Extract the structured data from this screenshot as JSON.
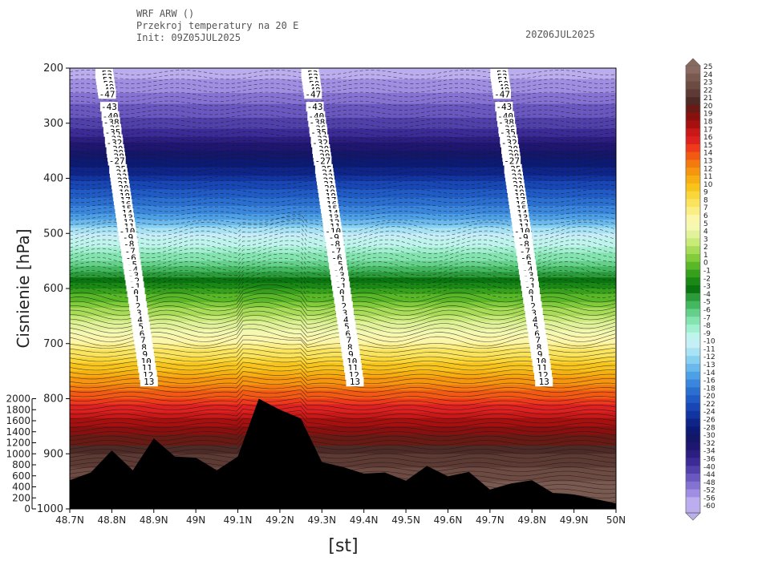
{
  "header": {
    "model": "WRF ARW ()",
    "section": "Przekroj temperatury na 20 E",
    "init": "Init: 09Z05JUL2025",
    "valid": "20Z06JUL2025"
  },
  "chart_data": {
    "type": "heatmap",
    "title": "Przekroj temperatury na 20 E",
    "xlabel": "[st]",
    "ylabel": "Cisnienie [hPa]",
    "xlim": [
      48.7,
      50.0
    ],
    "ylim": [
      1000,
      200
    ],
    "x_ticks": [
      "48.7N",
      "48.8N",
      "48.9N",
      "49N",
      "49.1N",
      "49.2N",
      "49.3N",
      "49.4N",
      "49.5N",
      "49.6N",
      "49.7N",
      "49.8N",
      "49.9N",
      "50N"
    ],
    "y_ticks": [
      "200",
      "300",
      "400",
      "500",
      "600",
      "700",
      "800",
      "900",
      "1000"
    ],
    "height_axis_ticks": [
      "2000",
      "1800",
      "1600",
      "1400",
      "1200",
      "1000",
      "800",
      "600",
      "400",
      "200",
      "0"
    ],
    "temperature_profile": {
      "pressure": [
        200,
        250,
        300,
        350,
        400,
        450,
        500,
        550,
        600,
        650,
        700,
        750,
        800,
        850,
        900,
        950,
        1000
      ],
      "temperature": [
        -55,
        -47,
        -38,
        -30,
        -23,
        -16,
        -10,
        -6,
        -1,
        3,
        7,
        11,
        15,
        19,
        22,
        24,
        25
      ]
    },
    "terrain_height_m": {
      "lat": [
        48.7,
        48.75,
        48.8,
        48.85,
        48.9,
        48.95,
        49.0,
        49.05,
        49.1,
        49.15,
        49.2,
        49.25,
        49.3,
        49.35,
        49.4,
        49.45,
        49.5,
        49.55,
        49.6,
        49.65,
        49.7,
        49.75,
        49.8,
        49.85,
        49.9,
        49.95,
        50.0
      ],
      "height": [
        520,
        660,
        1060,
        700,
        1280,
        950,
        930,
        700,
        950,
        2000,
        1800,
        1640,
        850,
        760,
        640,
        660,
        510,
        780,
        590,
        670,
        350,
        460,
        520,
        290,
        260,
        180,
        100
      ]
    },
    "contour_labels": {
      "columns_lat": [
        48.78,
        49.27,
        49.72
      ],
      "values": [
        "-53",
        "-52",
        "-51",
        "-50",
        "-49",
        "-48",
        "-47",
        "-43",
        "-40",
        "-38",
        "-36",
        "-35",
        "-33",
        "-32",
        "-30",
        "-29",
        "-28",
        "-27",
        "-25",
        "-24",
        "-23",
        "-22",
        "-21",
        "-20",
        "-19",
        "-18",
        "-17",
        "-16",
        "-15",
        "-14",
        "-13",
        "-12",
        "-11",
        "-10",
        "-9",
        "-8",
        "-7",
        "-6",
        "-5",
        "-4",
        "-3",
        "-2",
        "-1",
        "0",
        "1",
        "2",
        "3",
        "4",
        "5",
        "6",
        "7",
        "8",
        "9",
        "10",
        "11",
        "12",
        "13"
      ]
    },
    "colorbar": {
      "levels": [
        "25",
        "24",
        "23",
        "22",
        "21",
        "20",
        "19",
        "18",
        "17",
        "16",
        "15",
        "14",
        "13",
        "12",
        "11",
        "10",
        "9",
        "8",
        "7",
        "6",
        "5",
        "4",
        "3",
        "2",
        "1",
        "0",
        "-1",
        "-2",
        "-3",
        "-4",
        "-5",
        "-6",
        "-7",
        "-8",
        "-9",
        "-10",
        "-11",
        "-12",
        "-13",
        "-14",
        "-16",
        "-18",
        "-20",
        "-22",
        "-24",
        "-26",
        "-28",
        "-30",
        "-32",
        "-34",
        "-36",
        "-40",
        "-44",
        "-48",
        "-52",
        "-56",
        "-60"
      ],
      "colors": [
        "#8a6a60",
        "#7a5a50",
        "#6d4a42",
        "#5e3a34",
        "#4e2a26",
        "#6a1a14",
        "#8a1010",
        "#a81010",
        "#c81818",
        "#dd2020",
        "#ee3a1a",
        "#f25a14",
        "#f47a10",
        "#f5960e",
        "#f7ae10",
        "#f8c41c",
        "#f9d63a",
        "#fae45e",
        "#fbee84",
        "#fcf6aa",
        "#f4f8b0",
        "#e2f29a",
        "#c8ea78",
        "#a8dc58",
        "#82cc3c",
        "#5ab828",
        "#36a01c",
        "#1a8814",
        "#0a7410",
        "#2a9a3a",
        "#44b860",
        "#64d08a",
        "#84e4b0",
        "#a2eed0",
        "#bef4ec",
        "#c6eef6",
        "#a8e2f4",
        "#88d0f0",
        "#6ab8ec",
        "#4ea0e6",
        "#3a86dc",
        "#2a6ed0",
        "#205ac4",
        "#1846b4",
        "#1234a0",
        "#0e2488",
        "#0c1a74",
        "#14166a",
        "#1e1670",
        "#2c1e80",
        "#3c2a96",
        "#5040aa",
        "#6a58c0",
        "#8672d2",
        "#a08ee2",
        "#bcaeee"
      ]
    },
    "colors": {
      "terrain": "#000000",
      "contour_line": "#1a1a1a"
    }
  }
}
